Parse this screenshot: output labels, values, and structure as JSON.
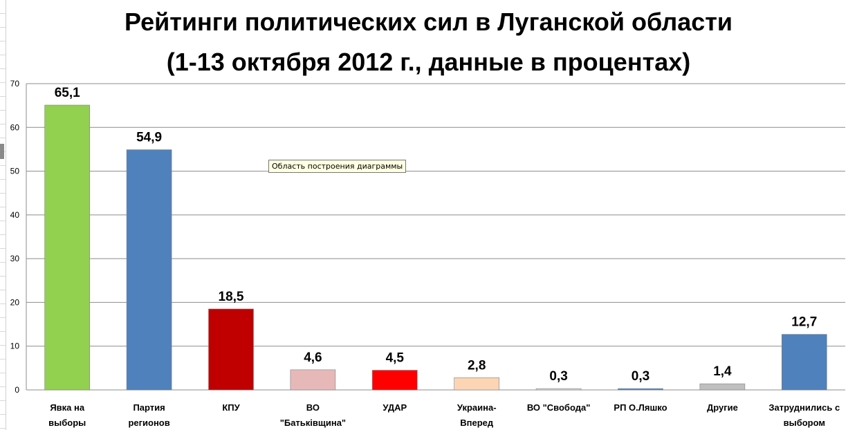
{
  "title_line1": "Рейтинги политических сил в Луганской области",
  "title_line2": "(1-13 октября 2012 г., данные в процентах)",
  "tooltip": "Область построения диаграммы",
  "chart_data": {
    "type": "bar",
    "categories": [
      [
        "Явка на",
        "выборы"
      ],
      [
        "Партия",
        "регионов"
      ],
      [
        "КПУ"
      ],
      [
        "ВО",
        "\"Батьківщина\""
      ],
      [
        "УДАР"
      ],
      [
        "Украина-",
        "Вперед"
      ],
      [
        "ВО \"Свобода\""
      ],
      [
        "РП О.Ляшко"
      ],
      [
        "Другие"
      ],
      [
        "Затруднились с",
        "выбором"
      ]
    ],
    "values": [
      65.1,
      54.9,
      18.5,
      4.6,
      4.5,
      2.8,
      0.3,
      0.3,
      1.4,
      12.7
    ],
    "value_labels": [
      "65,1",
      "54,9",
      "18,5",
      "4,6",
      "4,5",
      "2,8",
      "0,3",
      "0,3",
      "1,4",
      "12,7"
    ],
    "colors": [
      "#92d050",
      "#4f81bd",
      "#c00000",
      "#e6b9b8",
      "#ff0000",
      "#fcd5b5",
      "#d9d9d9",
      "#4f81bd",
      "#bfbfbf",
      "#4f81bd"
    ],
    "ylim": [
      0,
      70
    ],
    "yticks": [
      "0",
      "10",
      "20",
      "30",
      "40",
      "50",
      "60",
      "70"
    ],
    "grid": true,
    "legend": "none"
  }
}
